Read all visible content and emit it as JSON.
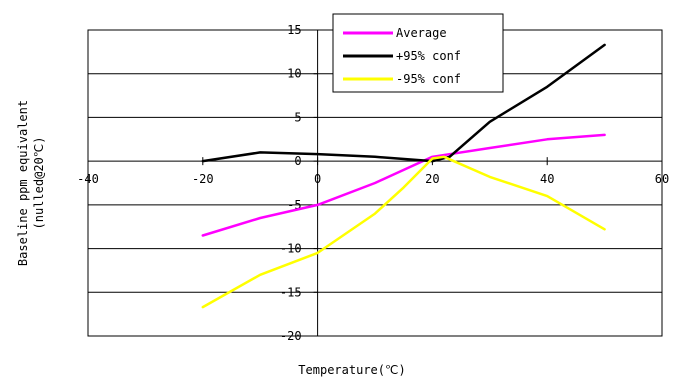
{
  "chart_data": {
    "type": "line",
    "xlabel": "Temperature(℃)",
    "ylabel_lines": [
      "Baseline ppm equivalent",
      "(nulled@20℃)"
    ],
    "xlim": [
      -40,
      60
    ],
    "ylim": [
      -20,
      15
    ],
    "xticks": [
      -40,
      -20,
      0,
      20,
      40,
      60
    ],
    "yticks": [
      15,
      10,
      5,
      0,
      -5,
      -10,
      -15,
      -20
    ],
    "grid": "horizontal",
    "legend_position": "top-center",
    "series": [
      {
        "name": "Average",
        "color": "#ff00ff",
        "points": [
          [
            -20,
            -8.5
          ],
          [
            -10,
            -6.5
          ],
          [
            0,
            -5
          ],
          [
            10,
            -2.5
          ],
          [
            20,
            0.5
          ],
          [
            30,
            1.5
          ],
          [
            40,
            2.5
          ],
          [
            50,
            3
          ]
        ]
      },
      {
        "name": "+95% conf",
        "color": "#000000",
        "points": [
          [
            -20,
            0
          ],
          [
            -10,
            1
          ],
          [
            0,
            0.8
          ],
          [
            10,
            0.5
          ],
          [
            20,
            0
          ],
          [
            23,
            0.5
          ],
          [
            30,
            4.5
          ],
          [
            40,
            8.5
          ],
          [
            50,
            13.3
          ]
        ]
      },
      {
        "name": "-95% conf",
        "color": "#ffff00",
        "points": [
          [
            -20,
            -16.7
          ],
          [
            -10,
            -13
          ],
          [
            0,
            -10.5
          ],
          [
            10,
            -6
          ],
          [
            15,
            -3
          ],
          [
            20,
            0.3
          ],
          [
            22,
            0.5
          ],
          [
            30,
            -1.8
          ],
          [
            40,
            -4
          ],
          [
            50,
            -7.8
          ]
        ]
      }
    ]
  }
}
